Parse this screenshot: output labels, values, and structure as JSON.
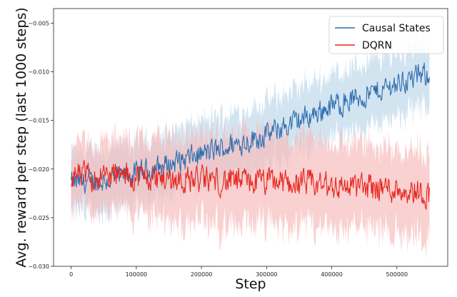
{
  "chart_data": {
    "type": "line",
    "title": "",
    "xlabel": "Step",
    "ylabel": "Avg. reward per step (last 1000 steps)",
    "xlim": [
      -27000,
      578000
    ],
    "ylim": [
      -0.03,
      -0.0035
    ],
    "x_ticks": [
      0,
      100000,
      200000,
      300000,
      400000,
      500000
    ],
    "x_tick_labels": [
      "0",
      "100000",
      "200000",
      "300000",
      "400000",
      "500000"
    ],
    "y_ticks": [
      -0.03,
      -0.025,
      -0.02,
      -0.015,
      -0.01,
      -0.005
    ],
    "y_tick_labels": [
      "−0.030",
      "−0.025",
      "−0.020",
      "−0.015",
      "−0.010",
      "−0.005"
    ],
    "grid": false,
    "legend_position": "top-right",
    "series": [
      {
        "name": "Causal States",
        "color": "#2f6fb0",
        "band_color": "#bcd5ea",
        "x": [
          0,
          50000,
          100000,
          150000,
          200000,
          250000,
          300000,
          350000,
          400000,
          450000,
          500000,
          550000
        ],
        "y": [
          -0.0215,
          -0.0212,
          -0.0205,
          -0.0195,
          -0.0185,
          -0.0175,
          -0.0165,
          -0.015,
          -0.0135,
          -0.0125,
          -0.0112,
          -0.0102
        ],
        "band_halfwidth": [
          0.003,
          0.003,
          0.003,
          0.0032,
          0.0033,
          0.0033,
          0.0033,
          0.0033,
          0.0033,
          0.0033,
          0.0033,
          0.0033
        ]
      },
      {
        "name": "DQRN",
        "color": "#e8271f",
        "band_color": "#f6b9b9",
        "x": [
          0,
          50000,
          100000,
          150000,
          200000,
          250000,
          300000,
          350000,
          400000,
          450000,
          500000,
          550000
        ],
        "y": [
          -0.0208,
          -0.0207,
          -0.0208,
          -0.021,
          -0.0211,
          -0.0213,
          -0.0213,
          -0.0215,
          -0.0217,
          -0.0218,
          -0.022,
          -0.0225
        ],
        "band_halfwidth": [
          0.0032,
          0.0035,
          0.0038,
          0.0042,
          0.0045,
          0.0046,
          0.0046,
          0.0045,
          0.0044,
          0.0043,
          0.0043,
          0.0043
        ]
      }
    ]
  }
}
